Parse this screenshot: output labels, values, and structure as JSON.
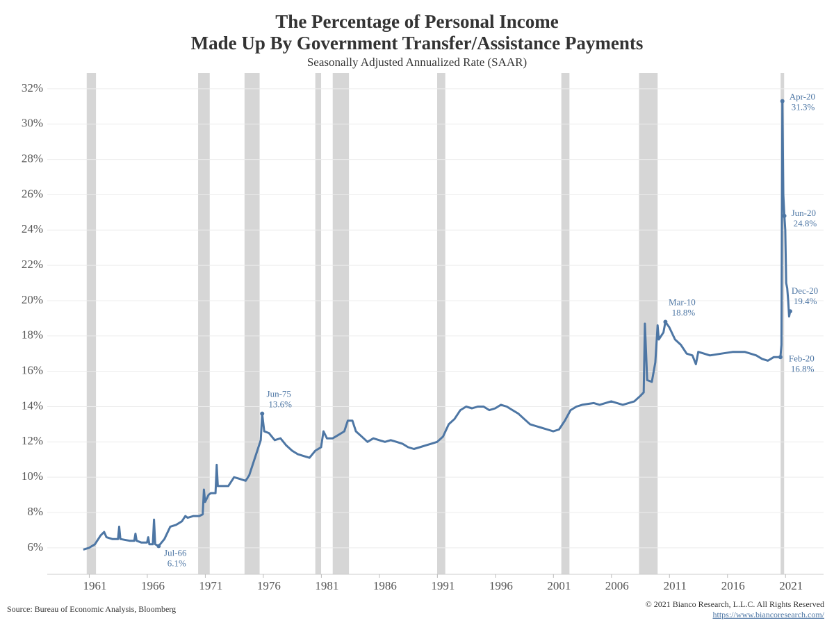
{
  "chart_data": {
    "type": "line",
    "title": [
      "The Percentage of Personal Income",
      "Made Up By Government Transfer/Assistance Payments"
    ],
    "subtitle": "Seasonally Adjusted Annualized Rate (SAAR)",
    "source": "Source: Bureau of Economic Analysis, Bloomberg",
    "copyright": "© 2021 Bianco Research, L.L.C. All Rights Reserved",
    "url": "https://www.biancoresearch.com/",
    "xlim": [
      1956.9,
      2023.8
    ],
    "ylim": [
      4.5,
      32.9
    ],
    "xticks": [
      1961,
      1966,
      1971,
      1976,
      1981,
      1986,
      1991,
      1996,
      2001,
      2006,
      2011,
      2016,
      2021
    ],
    "yticks": [
      {
        "value": 6,
        "label": "6%"
      },
      {
        "value": 8,
        "label": "8%"
      },
      {
        "value": 10,
        "label": "10%"
      },
      {
        "value": 12,
        "label": "12%"
      },
      {
        "value": 14,
        "label": "14%"
      },
      {
        "value": 16,
        "label": "16%"
      },
      {
        "value": 18,
        "label": "18%"
      },
      {
        "value": 20,
        "label": "20%"
      },
      {
        "value": 22,
        "label": "22%"
      },
      {
        "value": 24,
        "label": "24%"
      },
      {
        "value": 26,
        "label": "26%"
      },
      {
        "value": 28,
        "label": "28%"
      },
      {
        "value": 30,
        "label": "30%"
      },
      {
        "value": 32,
        "label": "32%"
      }
    ],
    "grid": true,
    "recession_color": "#d6d6d6",
    "recessions": [
      [
        1960.3,
        1961.1
      ],
      [
        1969.9,
        1970.9
      ],
      [
        1973.9,
        1975.2
      ],
      [
        1980.0,
        1980.5
      ],
      [
        1981.5,
        1982.9
      ],
      [
        1990.5,
        1991.2
      ],
      [
        2001.2,
        2001.9
      ],
      [
        2007.9,
        2009.5
      ],
      [
        2020.1,
        2020.4
      ]
    ],
    "series": [
      {
        "color": "#4d76a4",
        "x": [
          1960.0,
          1960.5,
          1961.0,
          1961.5,
          1961.8,
          1962.0,
          1962.5,
          1963.0,
          1963.1,
          1963.2,
          1964.0,
          1964.4,
          1964.5,
          1964.6,
          1965.0,
          1965.5,
          1965.6,
          1965.7,
          1966.0,
          1966.1,
          1966.2,
          1966.5,
          1967.0,
          1967.5,
          1968.0,
          1968.5,
          1968.8,
          1969.0,
          1969.5,
          1970.0,
          1970.3,
          1970.4,
          1970.5,
          1970.8,
          1971.0,
          1971.4,
          1971.5,
          1971.6,
          1972.0,
          1972.5,
          1973.0,
          1973.5,
          1974.0,
          1974.3,
          1974.6,
          1975.0,
          1975.3,
          1975.42,
          1975.6,
          1976.0,
          1976.5,
          1977.0,
          1977.5,
          1978.0,
          1978.5,
          1979.0,
          1979.5,
          1980.0,
          1980.5,
          1980.7,
          1981.0,
          1981.5,
          1982.0,
          1982.5,
          1982.8,
          1983.2,
          1983.5,
          1984.0,
          1984.5,
          1985.0,
          1985.5,
          1986.0,
          1986.5,
          1987.0,
          1987.5,
          1988.0,
          1988.5,
          1989.0,
          1989.5,
          1990.0,
          1990.5,
          1991.0,
          1991.5,
          1992.0,
          1992.5,
          1993.0,
          1993.5,
          1994.0,
          1994.5,
          1995.0,
          1995.5,
          1996.0,
          1996.5,
          1997.0,
          1997.5,
          1998.0,
          1998.5,
          1999.0,
          1999.5,
          2000.0,
          2000.5,
          2001.0,
          2001.5,
          2002.0,
          2002.5,
          2003.0,
          2004.0,
          2004.5,
          2005.0,
          2005.5,
          2006.0,
          2006.5,
          2007.0,
          2007.5,
          2008.0,
          2008.3,
          2008.4,
          2008.6,
          2009.0,
          2009.3,
          2009.5,
          2009.6,
          2010.0,
          2010.17,
          2010.5,
          2011.0,
          2011.5,
          2012.0,
          2012.5,
          2012.8,
          2013.0,
          2013.5,
          2014.0,
          2015.0,
          2016.0,
          2017.0,
          2017.5,
          2018.0,
          2018.5,
          2019.0,
          2019.5,
          2020.08,
          2020.17,
          2020.25,
          2020.33,
          2020.42,
          2020.5,
          2020.58,
          2020.67,
          2020.75,
          2020.83,
          2020.92
        ],
        "values": [
          5.9,
          6.0,
          6.2,
          6.7,
          6.9,
          6.6,
          6.5,
          6.5,
          7.2,
          6.5,
          6.4,
          6.4,
          6.8,
          6.4,
          6.3,
          6.3,
          6.6,
          6.2,
          6.2,
          7.6,
          6.2,
          6.1,
          6.5,
          7.2,
          7.3,
          7.5,
          7.8,
          7.7,
          7.8,
          7.8,
          7.9,
          9.3,
          8.6,
          9.0,
          9.1,
          9.1,
          10.7,
          9.5,
          9.5,
          9.5,
          10.0,
          9.9,
          9.8,
          10.1,
          10.7,
          11.5,
          12.1,
          13.6,
          12.6,
          12.5,
          12.1,
          12.2,
          11.8,
          11.5,
          11.3,
          11.2,
          11.1,
          11.5,
          11.7,
          12.6,
          12.2,
          12.2,
          12.4,
          12.6,
          13.2,
          13.2,
          12.6,
          12.3,
          12.0,
          12.2,
          12.1,
          12.0,
          12.1,
          12.0,
          11.9,
          11.7,
          11.6,
          11.7,
          11.8,
          11.9,
          12.0,
          12.3,
          13.0,
          13.3,
          13.8,
          14.0,
          13.9,
          14.0,
          14.0,
          13.8,
          13.9,
          14.1,
          14.0,
          13.8,
          13.6,
          13.3,
          13.0,
          12.9,
          12.8,
          12.7,
          12.6,
          12.7,
          13.2,
          13.8,
          14.0,
          14.1,
          14.2,
          14.1,
          14.2,
          14.3,
          14.2,
          14.1,
          14.2,
          14.3,
          14.6,
          14.8,
          18.7,
          15.5,
          15.4,
          16.5,
          18.6,
          17.8,
          18.2,
          18.8,
          18.5,
          17.8,
          17.5,
          17.0,
          16.9,
          16.4,
          17.1,
          17.0,
          16.9,
          17.0,
          17.1,
          17.1,
          17.0,
          16.9,
          16.7,
          16.6,
          16.8,
          16.8,
          17.5,
          31.3,
          26.0,
          24.8,
          24.0,
          21.0,
          20.7,
          20.0,
          19.1,
          19.4
        ]
      }
    ],
    "annotations": [
      {
        "date": "Jul-66",
        "label": "6.1%",
        "x": 1966.5,
        "y": 6.1
      },
      {
        "date": "Jun-75",
        "label": "13.6%",
        "x": 1975.42,
        "y": 13.6
      },
      {
        "date": "Mar-10",
        "label": "18.8%",
        "x": 2010.17,
        "y": 18.8
      },
      {
        "date": "Feb-20",
        "label": "16.8%",
        "x": 2020.08,
        "y": 16.8
      },
      {
        "date": "Apr-20",
        "label": "31.3%",
        "x": 2020.25,
        "y": 31.3
      },
      {
        "date": "Jun-20",
        "label": "24.8%",
        "x": 2020.42,
        "y": 24.8
      },
      {
        "date": "Dec-20",
        "label": "19.4%",
        "x": 2020.92,
        "y": 19.4
      }
    ]
  }
}
